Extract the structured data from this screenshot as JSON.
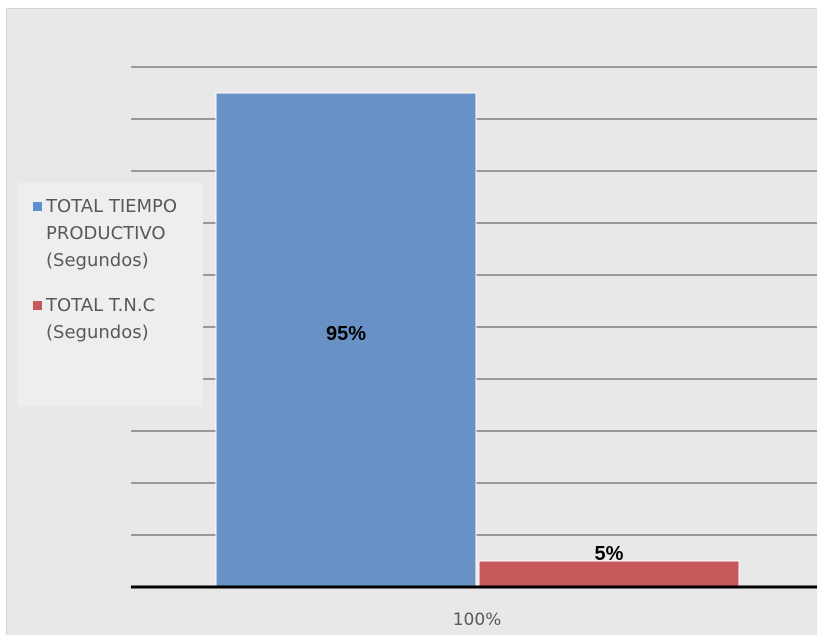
{
  "chart_data": {
    "type": "bar",
    "categories": [
      "100%"
    ],
    "series": [
      {
        "name": "TOTAL TIEMPO PRODUCTIVO (Segundos)",
        "values": [
          95
        ],
        "data_label": "95%",
        "color": "#6891c6"
      },
      {
        "name": "TOTAL T.N.C (Segundos)",
        "values": [
          5
        ],
        "data_label": "5%",
        "color": "#c5585a"
      }
    ],
    "ylim": [
      0,
      100
    ],
    "grid": true,
    "legend_position": "left",
    "title": "",
    "xlabel": "",
    "ylabel": ""
  },
  "legend": {
    "items": [
      {
        "line1": "TOTAL TIEMPO",
        "line2": "PRODUCTIVO",
        "line3": "(Segundos)",
        "color": "#5b8fcf"
      },
      {
        "line1": "TOTAL T.N.C",
        "line2": "(Segundos)",
        "color": "#c5585a"
      }
    ]
  },
  "colors": {
    "background": "#e8e8e8",
    "gridline": "#4a4a4a",
    "axis": "#000000"
  }
}
